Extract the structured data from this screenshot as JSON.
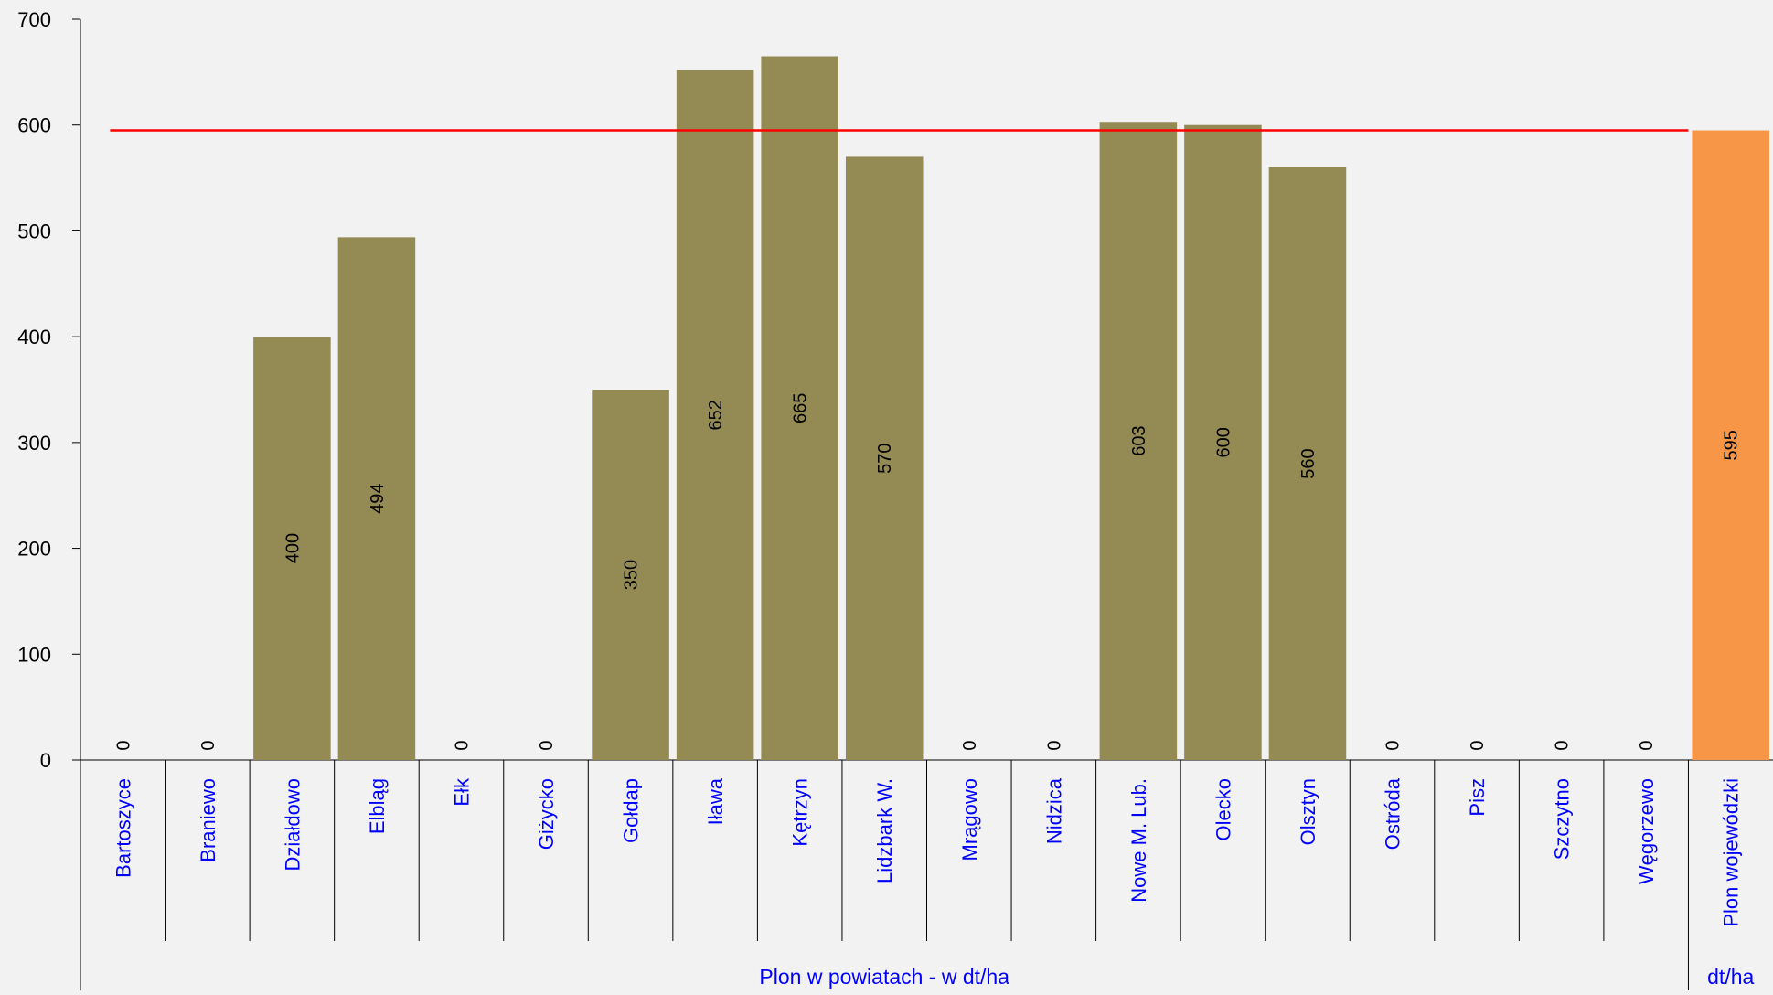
{
  "chart_data": {
    "type": "bar",
    "categories": [
      "Bartoszyce",
      "Braniewo",
      "Działdowo",
      "Elbląg",
      "Ełk",
      "Giżycko",
      "Gołdap",
      "Iława",
      "Kętrzyn",
      "Lidzbark W.",
      "Mrągowo",
      "Nidzica",
      "Nowe M. Lub.",
      "Olecko",
      "Olsztyn",
      "Ostróda",
      "Pisz",
      "Szczytno",
      "Węgorzewo",
      "Plon wojewódzki"
    ],
    "values": [
      0,
      0,
      400,
      494,
      0,
      0,
      350,
      652,
      665,
      570,
      0,
      0,
      603,
      600,
      560,
      0,
      0,
      0,
      0,
      595
    ],
    "data_labels": [
      "0",
      "0",
      "400",
      "494",
      "0",
      "0",
      "350",
      "652",
      "665",
      "570",
      "0",
      "0",
      "603",
      "600",
      "560",
      "0",
      "0",
      "0",
      "0",
      "595"
    ],
    "reference_line": 595,
    "ylim": [
      0,
      700
    ],
    "yticks": [
      "0",
      "100",
      "200",
      "300",
      "400",
      "500",
      "600",
      "700"
    ],
    "group_labels": [
      "Plon w powiatach - w dt/ha",
      "dt/ha"
    ],
    "grid": false,
    "colors": {
      "bar": "#948a54",
      "highlight_bar": "#f79646",
      "reference_line": "#ff0000",
      "category_text": "#0000ff",
      "axis": "#000000",
      "background": "#f2f2f2"
    }
  }
}
